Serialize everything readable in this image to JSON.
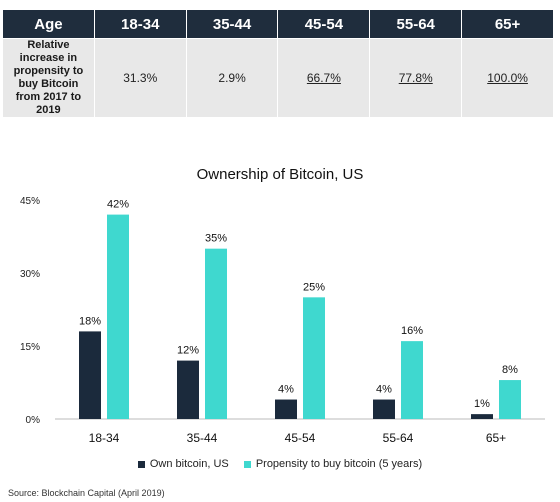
{
  "table": {
    "header_label": "Age",
    "columns": [
      "18-34",
      "35-44",
      "45-54",
      "55-64",
      "65+"
    ],
    "row_label": "Relative increase in propensity to buy Bitcoin from 2017 to 2019",
    "values": [
      "31.3%",
      "2.9%",
      "66.7%",
      "77.8%",
      "100.0%"
    ]
  },
  "chart_data": {
    "type": "bar",
    "title": "Ownership of Bitcoin, US",
    "categories": [
      "18-34",
      "35-44",
      "45-54",
      "55-64",
      "65+"
    ],
    "series": [
      {
        "name": "Own bitcoin, US",
        "values": [
          18,
          12,
          4,
          4,
          1
        ],
        "labels": [
          "18%",
          "12%",
          "4%",
          "4%",
          "1%"
        ],
        "color": "#1b2a3c"
      },
      {
        "name": "Propensity to buy bitcoin (5 years)",
        "values": [
          42,
          35,
          25,
          16,
          8
        ],
        "labels": [
          "42%",
          "35%",
          "25%",
          "16%",
          "8%"
        ],
        "color": "#3fd8cf"
      }
    ],
    "yticks": [
      "0%",
      "15%",
      "30%",
      "45%"
    ],
    "ylim": [
      0,
      45
    ],
    "grid": false,
    "legend": "bottom"
  },
  "source": "Source: Blockchain Capital (April 2019)"
}
